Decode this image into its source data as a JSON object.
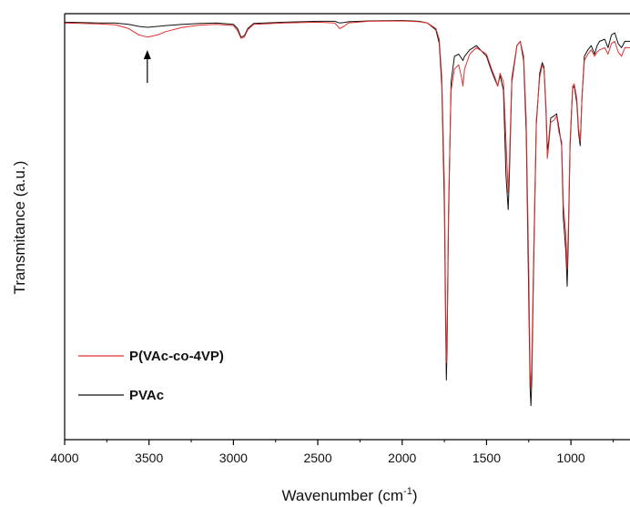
{
  "chart_data": {
    "type": "line",
    "xlabel": "Wavenumber (cm",
    "xlabel_sup": "-1",
    "xlabel_suffix": ")",
    "ylabel": "Transmitance (a.u.)",
    "xlim": [
      4000,
      650
    ],
    "x_reversed": true,
    "ylim": [
      0,
      1
    ],
    "x_ticks": [
      4000,
      3500,
      3000,
      2500,
      2000,
      1500,
      1000
    ],
    "grid": false,
    "legend_position": "bottom-left",
    "annotation": {
      "type": "arrow",
      "x": 3510,
      "direction": "up"
    },
    "series": [
      {
        "name": "P(VAc-co-4VP)",
        "color": "#e03030",
        "points": [
          [
            4000,
            0.978
          ],
          [
            3900,
            0.977
          ],
          [
            3800,
            0.976
          ],
          [
            3700,
            0.974
          ],
          [
            3620,
            0.965
          ],
          [
            3560,
            0.95
          ],
          [
            3510,
            0.945
          ],
          [
            3450,
            0.95
          ],
          [
            3400,
            0.958
          ],
          [
            3300,
            0.968
          ],
          [
            3200,
            0.973
          ],
          [
            3100,
            0.975
          ],
          [
            3000,
            0.972
          ],
          [
            2975,
            0.96
          ],
          [
            2955,
            0.942
          ],
          [
            2935,
            0.945
          ],
          [
            2915,
            0.962
          ],
          [
            2880,
            0.975
          ],
          [
            2700,
            0.978
          ],
          [
            2500,
            0.98
          ],
          [
            2400,
            0.978
          ],
          [
            2370,
            0.965
          ],
          [
            2345,
            0.97
          ],
          [
            2320,
            0.978
          ],
          [
            2200,
            0.982
          ],
          [
            2000,
            0.983
          ],
          [
            1900,
            0.981
          ],
          [
            1850,
            0.978
          ],
          [
            1800,
            0.965
          ],
          [
            1780,
            0.94
          ],
          [
            1765,
            0.85
          ],
          [
            1750,
            0.6
          ],
          [
            1742,
            0.3
          ],
          [
            1738,
            0.18
          ],
          [
            1734,
            0.25
          ],
          [
            1725,
            0.55
          ],
          [
            1710,
            0.82
          ],
          [
            1690,
            0.87
          ],
          [
            1665,
            0.88
          ],
          [
            1648,
            0.85
          ],
          [
            1640,
            0.83
          ],
          [
            1630,
            0.87
          ],
          [
            1600,
            0.905
          ],
          [
            1560,
            0.92
          ],
          [
            1500,
            0.905
          ],
          [
            1470,
            0.87
          ],
          [
            1450,
            0.85
          ],
          [
            1434,
            0.83
          ],
          [
            1420,
            0.86
          ],
          [
            1400,
            0.84
          ],
          [
            1385,
            0.7
          ],
          [
            1372,
            0.58
          ],
          [
            1365,
            0.65
          ],
          [
            1350,
            0.85
          ],
          [
            1320,
            0.925
          ],
          [
            1300,
            0.935
          ],
          [
            1280,
            0.9
          ],
          [
            1265,
            0.75
          ],
          [
            1250,
            0.4
          ],
          [
            1242,
            0.16
          ],
          [
            1237,
            0.12
          ],
          [
            1232,
            0.18
          ],
          [
            1220,
            0.45
          ],
          [
            1205,
            0.75
          ],
          [
            1185,
            0.85
          ],
          [
            1170,
            0.88
          ],
          [
            1160,
            0.87
          ],
          [
            1148,
            0.77
          ],
          [
            1140,
            0.66
          ],
          [
            1132,
            0.69
          ],
          [
            1120,
            0.745
          ],
          [
            1100,
            0.75
          ],
          [
            1085,
            0.76
          ],
          [
            1070,
            0.72
          ],
          [
            1055,
            0.7
          ],
          [
            1045,
            0.55
          ],
          [
            1030,
            0.48
          ],
          [
            1022,
            0.4
          ],
          [
            1015,
            0.5
          ],
          [
            1005,
            0.7
          ],
          [
            990,
            0.83
          ],
          [
            980,
            0.835
          ],
          [
            965,
            0.8
          ],
          [
            955,
            0.73
          ],
          [
            945,
            0.7
          ],
          [
            935,
            0.8
          ],
          [
            920,
            0.89
          ],
          [
            900,
            0.905
          ],
          [
            880,
            0.915
          ],
          [
            860,
            0.9
          ],
          [
            845,
            0.91
          ],
          [
            830,
            0.915
          ],
          [
            800,
            0.92
          ],
          [
            780,
            0.905
          ],
          [
            760,
            0.93
          ],
          [
            740,
            0.935
          ],
          [
            720,
            0.91
          ],
          [
            700,
            0.9
          ],
          [
            680,
            0.92
          ],
          [
            650,
            0.92
          ]
        ]
      },
      {
        "name": "PVAc",
        "color": "#111111",
        "points": [
          [
            4000,
            0.98
          ],
          [
            3900,
            0.979
          ],
          [
            3800,
            0.978
          ],
          [
            3700,
            0.978
          ],
          [
            3620,
            0.975
          ],
          [
            3560,
            0.97
          ],
          [
            3510,
            0.968
          ],
          [
            3450,
            0.97
          ],
          [
            3400,
            0.972
          ],
          [
            3300,
            0.975
          ],
          [
            3200,
            0.977
          ],
          [
            3100,
            0.978
          ],
          [
            3000,
            0.975
          ],
          [
            2975,
            0.965
          ],
          [
            2955,
            0.945
          ],
          [
            2935,
            0.948
          ],
          [
            2915,
            0.965
          ],
          [
            2880,
            0.977
          ],
          [
            2700,
            0.98
          ],
          [
            2500,
            0.982
          ],
          [
            2400,
            0.982
          ],
          [
            2370,
            0.978
          ],
          [
            2345,
            0.979
          ],
          [
            2320,
            0.981
          ],
          [
            2200,
            0.983
          ],
          [
            2000,
            0.984
          ],
          [
            1900,
            0.982
          ],
          [
            1850,
            0.978
          ],
          [
            1800,
            0.962
          ],
          [
            1780,
            0.93
          ],
          [
            1765,
            0.83
          ],
          [
            1750,
            0.55
          ],
          [
            1742,
            0.25
          ],
          [
            1738,
            0.14
          ],
          [
            1734,
            0.22
          ],
          [
            1725,
            0.52
          ],
          [
            1710,
            0.84
          ],
          [
            1690,
            0.9
          ],
          [
            1665,
            0.905
          ],
          [
            1648,
            0.895
          ],
          [
            1640,
            0.89
          ],
          [
            1630,
            0.9
          ],
          [
            1600,
            0.915
          ],
          [
            1560,
            0.925
          ],
          [
            1500,
            0.9
          ],
          [
            1470,
            0.865
          ],
          [
            1450,
            0.845
          ],
          [
            1434,
            0.83
          ],
          [
            1420,
            0.855
          ],
          [
            1400,
            0.82
          ],
          [
            1385,
            0.62
          ],
          [
            1372,
            0.54
          ],
          [
            1365,
            0.62
          ],
          [
            1350,
            0.84
          ],
          [
            1320,
            0.925
          ],
          [
            1300,
            0.935
          ],
          [
            1280,
            0.89
          ],
          [
            1265,
            0.72
          ],
          [
            1250,
            0.33
          ],
          [
            1242,
            0.12
          ],
          [
            1237,
            0.08
          ],
          [
            1232,
            0.14
          ],
          [
            1220,
            0.42
          ],
          [
            1205,
            0.74
          ],
          [
            1185,
            0.86
          ],
          [
            1170,
            0.885
          ],
          [
            1160,
            0.875
          ],
          [
            1148,
            0.78
          ],
          [
            1140,
            0.68
          ],
          [
            1132,
            0.7
          ],
          [
            1120,
            0.755
          ],
          [
            1100,
            0.76
          ],
          [
            1085,
            0.765
          ],
          [
            1070,
            0.73
          ],
          [
            1055,
            0.69
          ],
          [
            1045,
            0.52
          ],
          [
            1030,
            0.44
          ],
          [
            1022,
            0.36
          ],
          [
            1015,
            0.47
          ],
          [
            1005,
            0.69
          ],
          [
            990,
            0.825
          ],
          [
            980,
            0.83
          ],
          [
            965,
            0.79
          ],
          [
            955,
            0.72
          ],
          [
            945,
            0.69
          ],
          [
            935,
            0.8
          ],
          [
            920,
            0.9
          ],
          [
            900,
            0.915
          ],
          [
            880,
            0.925
          ],
          [
            860,
            0.905
          ],
          [
            845,
            0.925
          ],
          [
            830,
            0.935
          ],
          [
            800,
            0.94
          ],
          [
            780,
            0.92
          ],
          [
            760,
            0.95
          ],
          [
            740,
            0.955
          ],
          [
            720,
            0.93
          ],
          [
            700,
            0.92
          ],
          [
            680,
            0.935
          ],
          [
            650,
            0.935
          ]
        ]
      }
    ]
  }
}
